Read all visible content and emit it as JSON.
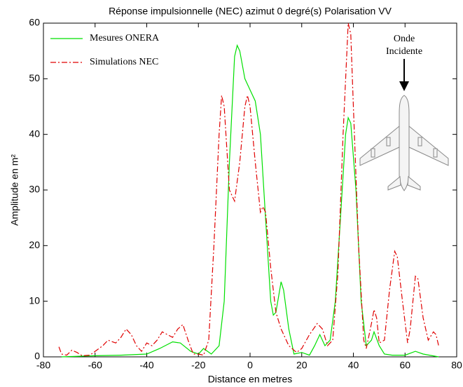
{
  "chart_data": {
    "type": "line",
    "title": "Réponse impulsionnelle (NEC) azimut 0 degré(s) Polarisation VV",
    "xlabel": "Distance en metres",
    "ylabel": "Amplitude en m²",
    "annotation": [
      "Onde",
      "Incidente"
    ],
    "xlim": [
      -80,
      80
    ],
    "xticks": [
      -80,
      -60,
      -40,
      -20,
      0,
      20,
      40,
      60,
      80
    ],
    "ylim": [
      0,
      60
    ],
    "yticks": [
      0,
      10,
      20,
      30,
      40,
      50,
      60
    ],
    "legend": "upper left",
    "series": [
      {
        "name": "Mesures ONERA",
        "color": "#00e000",
        "dash": "solid",
        "x": [
          -73,
          -60,
          -50,
          -40,
          -35,
          -30,
          -27,
          -23,
          -20,
          -18,
          -15,
          -12,
          -10,
          -8,
          -6,
          -5,
          -4,
          -2,
          0,
          2,
          4,
          6,
          8,
          9,
          10,
          12,
          13,
          15,
          17,
          20,
          23,
          25,
          27,
          29,
          31,
          33,
          35,
          37,
          38,
          39,
          41,
          43,
          45,
          47,
          48,
          50,
          52,
          55,
          60,
          64,
          67,
          73
        ],
        "values": [
          0,
          0.2,
          0.3,
          0.5,
          1.5,
          2.7,
          2.5,
          1,
          0.5,
          1.5,
          0.5,
          2,
          10,
          35,
          54,
          56,
          55,
          50,
          48,
          46,
          40,
          25,
          10,
          7.5,
          8,
          13.5,
          12,
          5,
          0.5,
          0.8,
          0.3,
          2,
          4,
          2,
          3,
          10,
          25,
          40,
          43,
          42,
          30,
          10,
          2,
          3,
          4.5,
          2,
          0.5,
          0.3,
          0.3,
          1,
          0.5,
          0
        ]
      },
      {
        "name": "Simulations NEC",
        "color": "#e00000",
        "dash": "dashdot",
        "x": [
          -74,
          -73,
          -71,
          -69,
          -67,
          -65,
          -62,
          -60,
          -57,
          -55,
          -52,
          -50,
          -48,
          -46,
          -44,
          -42,
          -40,
          -38,
          -36,
          -34,
          -32,
          -30,
          -28,
          -26,
          -24,
          -22,
          -20,
          -18,
          -16,
          -14,
          -12,
          -11,
          -10,
          -8,
          -6,
          -4,
          -2,
          -1,
          0,
          2,
          4,
          5,
          6,
          8,
          10,
          12,
          15,
          18,
          20,
          23,
          26,
          28,
          30,
          32,
          34,
          36,
          38,
          39,
          40,
          42,
          44,
          45,
          47,
          48,
          49,
          50,
          52,
          54,
          56,
          57,
          59,
          61,
          62,
          64,
          65,
          67,
          69,
          71,
          72,
          73
        ],
        "values": [
          1.8,
          0.5,
          0.3,
          1.2,
          0.8,
          0.2,
          0.3,
          1,
          2,
          3,
          2.5,
          3.5,
          5,
          4,
          2,
          1,
          2.5,
          2,
          3,
          4.5,
          4,
          3.5,
          5,
          5.8,
          3,
          0.5,
          0.5,
          0.3,
          3,
          20,
          40,
          47,
          45,
          30,
          28,
          35,
          45,
          47,
          45,
          35,
          26,
          27,
          26,
          16,
          8,
          5,
          2,
          0.8,
          1.5,
          4,
          6,
          5,
          2,
          3,
          15,
          40,
          60,
          58,
          45,
          20,
          3,
          1.5,
          6,
          8.5,
          7,
          2.5,
          3,
          12,
          19,
          18,
          10,
          2.5,
          5,
          14.5,
          14,
          7,
          3,
          4.5,
          4,
          2
        ]
      }
    ]
  }
}
